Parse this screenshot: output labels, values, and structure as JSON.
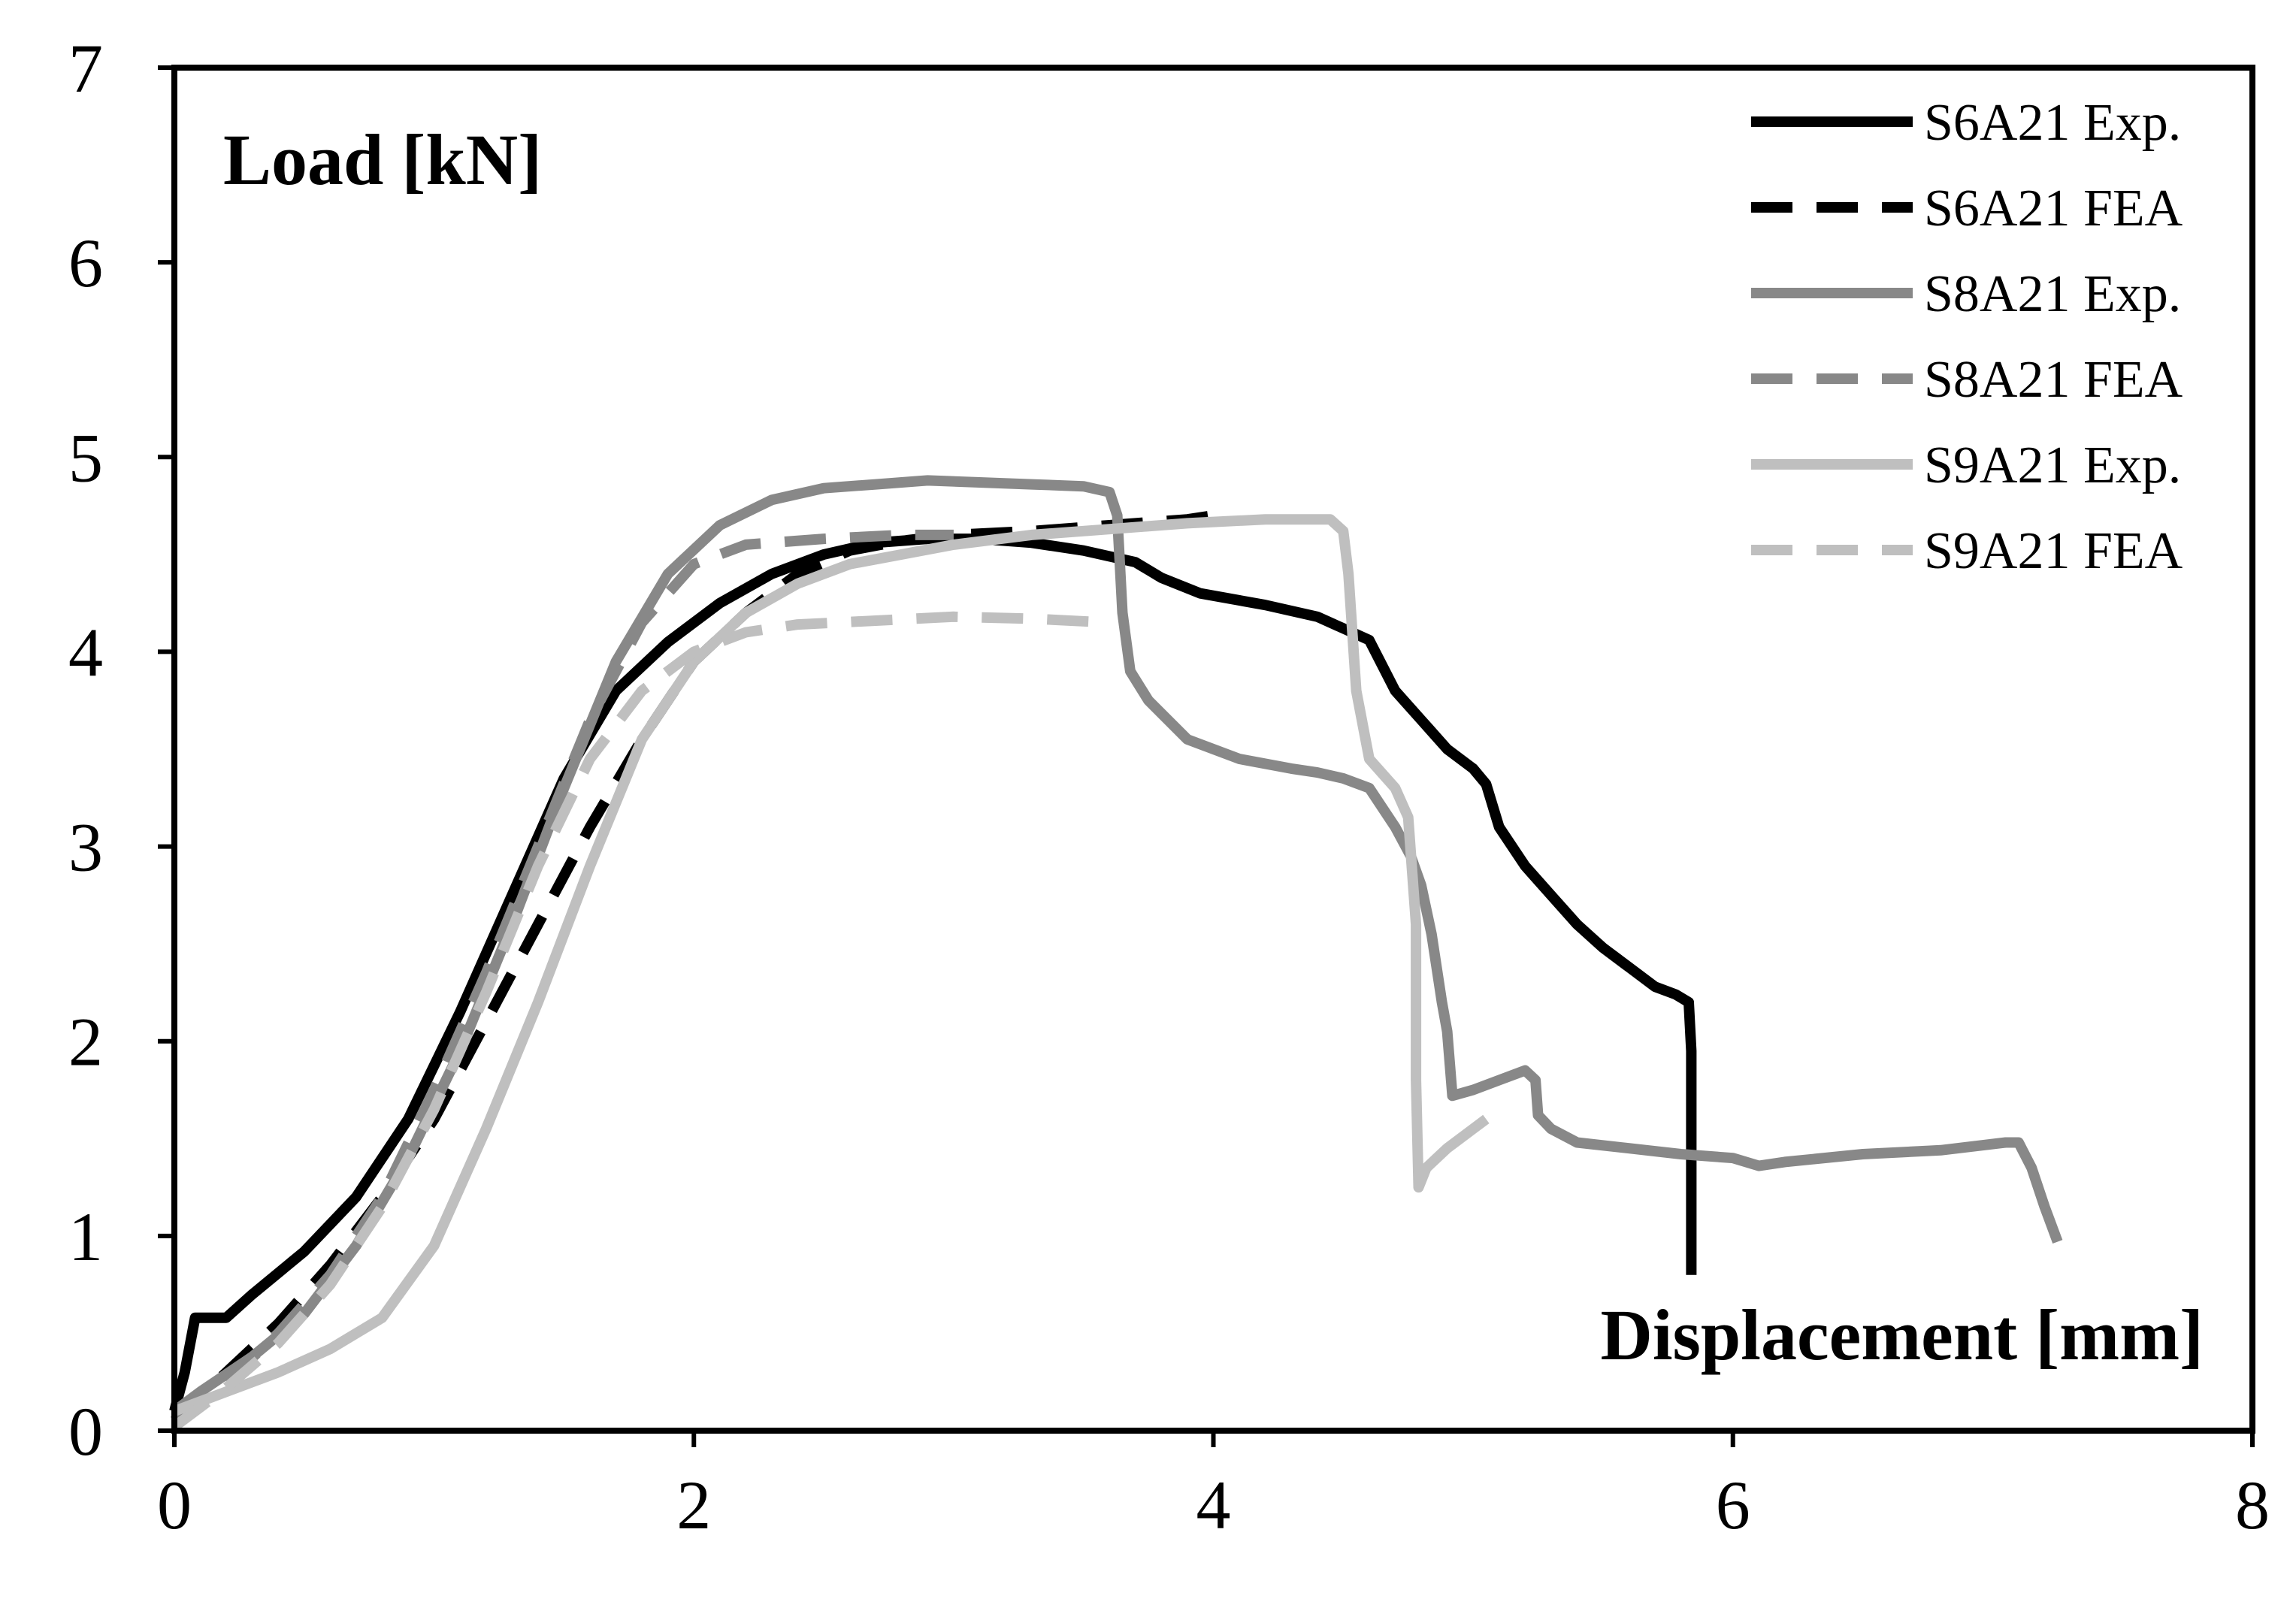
{
  "chart_data": {
    "type": "line",
    "xlabel": "Displacement [mm]",
    "ylabel": "Load [kN]",
    "xlim": [
      0,
      8
    ],
    "ylim": [
      0,
      7
    ],
    "x_ticks": [
      "0",
      "2",
      "4",
      "6",
      "8"
    ],
    "y_ticks": [
      "0",
      "1",
      "2",
      "3",
      "4",
      "5",
      "6",
      "7"
    ],
    "grid": false,
    "legend_position": "top-right",
    "series": [
      {
        "name": "S6A21 Exp.",
        "color": "#000000",
        "dash": "solid",
        "x": [
          0,
          0.04,
          0.08,
          0.2,
          0.3,
          0.5,
          0.7,
          0.9,
          1.1,
          1.3,
          1.5,
          1.7,
          1.9,
          2.1,
          2.3,
          2.5,
          2.7,
          2.9,
          3.1,
          3.3,
          3.5,
          3.7,
          3.8,
          3.95,
          4.2,
          4.4,
          4.5,
          4.6,
          4.7,
          4.8,
          4.9,
          5.0,
          5.05,
          5.1,
          5.2,
          5.3,
          5.4,
          5.5,
          5.6,
          5.7,
          5.78,
          5.83,
          5.84,
          5.84,
          5.84
        ],
        "y": [
          0.1,
          0.3,
          0.58,
          0.58,
          0.7,
          0.92,
          1.2,
          1.6,
          2.15,
          2.75,
          3.35,
          3.8,
          4.05,
          4.25,
          4.4,
          4.5,
          4.56,
          4.58,
          4.58,
          4.56,
          4.52,
          4.46,
          4.38,
          4.3,
          4.24,
          4.18,
          4.12,
          4.06,
          3.8,
          3.65,
          3.5,
          3.4,
          3.32,
          3.1,
          2.9,
          2.75,
          2.6,
          2.48,
          2.38,
          2.28,
          2.24,
          2.2,
          1.95,
          1.5,
          0.8
        ]
      },
      {
        "name": "S6A21 FEA",
        "color": "#000000",
        "dash": "dashed",
        "x": [
          0,
          0.2,
          0.4,
          0.6,
          0.8,
          1.0,
          1.2,
          1.4,
          1.6,
          1.8,
          2.0,
          2.2,
          2.4,
          2.6,
          2.8,
          3.0,
          3.3,
          3.6,
          3.9,
          4.0
        ],
        "y": [
          0.05,
          0.3,
          0.55,
          0.85,
          1.2,
          1.6,
          2.1,
          2.6,
          3.1,
          3.55,
          3.95,
          4.2,
          4.4,
          4.52,
          4.57,
          4.6,
          4.62,
          4.65,
          4.68,
          4.7
        ]
      },
      {
        "name": "S8A21 Exp.",
        "color": "#888888",
        "dash": "solid",
        "x": [
          0,
          0.1,
          0.3,
          0.5,
          0.7,
          0.9,
          1.1,
          1.3,
          1.5,
          1.7,
          1.9,
          2.1,
          2.3,
          2.5,
          2.7,
          2.9,
          3.1,
          3.3,
          3.5,
          3.6,
          3.63,
          3.65,
          3.68,
          3.75,
          3.9,
          4.1,
          4.3,
          4.4,
          4.5,
          4.6,
          4.7,
          4.76,
          4.8,
          4.84,
          4.88,
          4.9,
          4.92,
          5.0,
          5.1,
          5.2,
          5.24,
          5.25,
          5.3,
          5.4,
          5.6,
          5.8,
          6.0,
          6.1,
          6.2,
          6.5,
          6.8,
          7.05,
          7.1,
          7.15,
          7.2,
          7.25
        ],
        "y": [
          0.1,
          0.2,
          0.38,
          0.6,
          0.95,
          1.4,
          1.95,
          2.6,
          3.3,
          3.95,
          4.4,
          4.65,
          4.78,
          4.84,
          4.86,
          4.88,
          4.87,
          4.86,
          4.85,
          4.82,
          4.7,
          4.2,
          3.9,
          3.75,
          3.55,
          3.45,
          3.4,
          3.38,
          3.35,
          3.3,
          3.1,
          2.95,
          2.8,
          2.55,
          2.2,
          2.05,
          1.72,
          1.75,
          1.8,
          1.85,
          1.8,
          1.62,
          1.55,
          1.48,
          1.45,
          1.42,
          1.4,
          1.36,
          1.38,
          1.42,
          1.44,
          1.48,
          1.48,
          1.35,
          1.15,
          0.97
        ]
      },
      {
        "name": "S8A21 FEA",
        "color": "#888888",
        "dash": "dashed",
        "x": [
          0,
          0.2,
          0.4,
          0.6,
          0.8,
          1.0,
          1.2,
          1.4,
          1.6,
          1.8,
          2.0,
          2.2,
          2.5,
          2.8,
          3.0
        ],
        "y": [
          0.05,
          0.25,
          0.5,
          0.8,
          1.2,
          1.75,
          2.35,
          3.0,
          3.65,
          4.15,
          4.45,
          4.55,
          4.58,
          4.6,
          4.6
        ]
      },
      {
        "name": "S9A21 Exp.",
        "color": "#bfbfbf",
        "dash": "solid",
        "x": [
          0,
          0.2,
          0.4,
          0.6,
          0.8,
          1.0,
          1.2,
          1.4,
          1.6,
          1.8,
          2.0,
          2.2,
          2.4,
          2.6,
          2.8,
          3.0,
          3.3,
          3.6,
          3.9,
          4.2,
          4.45,
          4.5,
          4.52,
          4.55,
          4.6,
          4.7,
          4.75,
          4.78,
          4.78,
          4.79,
          4.82,
          4.9,
          5.0,
          5.05
        ],
        "y": [
          0.1,
          0.2,
          0.3,
          0.42,
          0.58,
          0.95,
          1.55,
          2.2,
          2.9,
          3.55,
          3.95,
          4.2,
          4.35,
          4.45,
          4.5,
          4.55,
          4.6,
          4.63,
          4.66,
          4.68,
          4.68,
          4.62,
          4.4,
          3.8,
          3.45,
          3.3,
          3.15,
          2.6,
          1.8,
          1.25,
          1.35,
          1.45,
          1.55,
          1.6
        ]
      },
      {
        "name": "S9A21 FEA",
        "color": "#bfbfbf",
        "dash": "dashed",
        "x": [
          0,
          0.2,
          0.4,
          0.6,
          0.8,
          1.0,
          1.2,
          1.4,
          1.6,
          1.8,
          2.0,
          2.2,
          2.4,
          2.7,
          3.0,
          3.3,
          3.6
        ],
        "y": [
          0.02,
          0.22,
          0.45,
          0.75,
          1.15,
          1.65,
          2.25,
          2.9,
          3.45,
          3.8,
          4.0,
          4.1,
          4.14,
          4.16,
          4.18,
          4.17,
          4.15
        ]
      }
    ]
  }
}
